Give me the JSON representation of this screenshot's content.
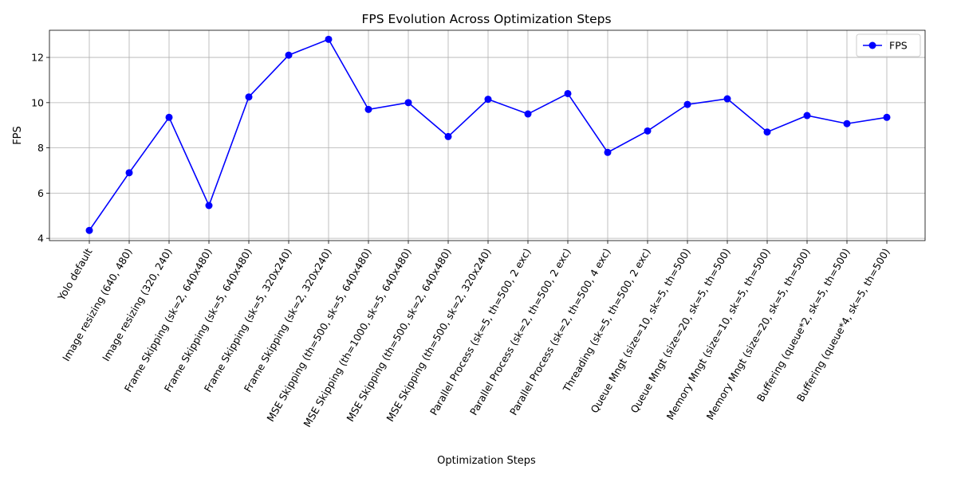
{
  "chart_data": {
    "type": "line",
    "title": "FPS Evolution Across Optimization Steps",
    "xlabel": "Optimization Steps",
    "ylabel": "FPS",
    "ylim": [
      3.9,
      13.2
    ],
    "yticks": [
      4,
      6,
      8,
      10,
      12
    ],
    "grid": true,
    "legend_position": "top-right",
    "categories": [
      "Yolo default",
      "Image resizing (640, 480)",
      "Image resizing (320, 240)",
      "Frame Skipping (sk=2, 640x480)",
      "Frame Skipping (sk=5, 640x480)",
      "Frame Skipping (sk=5, 320x240)",
      "Frame Skipping (sk=2, 320x240)",
      "MSE Skipping (th=500, sk=5, 640x480)",
      "MSE Skipping (th=1000, sk=5, 640x480)",
      "MSE Skipping (th=500, sk=2, 640x480)",
      "MSE Skipping (th=500, sk=2, 320x240)",
      "Parallel Process (sk=5, th=500, 2 exc)",
      "Parallel Process (sk=2, th=500, 2 exc)",
      "Parallel Process (sk=2, th=500, 4 exc)",
      "Threading (sk=5, th=500, 2 exc)",
      "Queue Mngt (size=10, sk=5, th=500)",
      "Queue Mngt (size=20, sk=5, th=500)",
      "Memory Mngt (size=10, sk=5, th=500)",
      "Memory Mngt (size=20, sk=5, th=500)",
      "Buffering (queue*2, sk=5, th=500)",
      "Buffering (queue*4, sk=5, th=500)"
    ],
    "series": [
      {
        "name": "FPS",
        "color": "#0000ff",
        "marker": "circle",
        "values": [
          4.35,
          6.9,
          9.35,
          5.45,
          10.25,
          12.1,
          12.8,
          9.7,
          10.0,
          8.5,
          10.15,
          9.5,
          10.4,
          7.8,
          8.75,
          9.92,
          10.17,
          8.7,
          9.43,
          9.07,
          9.35
        ]
      }
    ]
  }
}
